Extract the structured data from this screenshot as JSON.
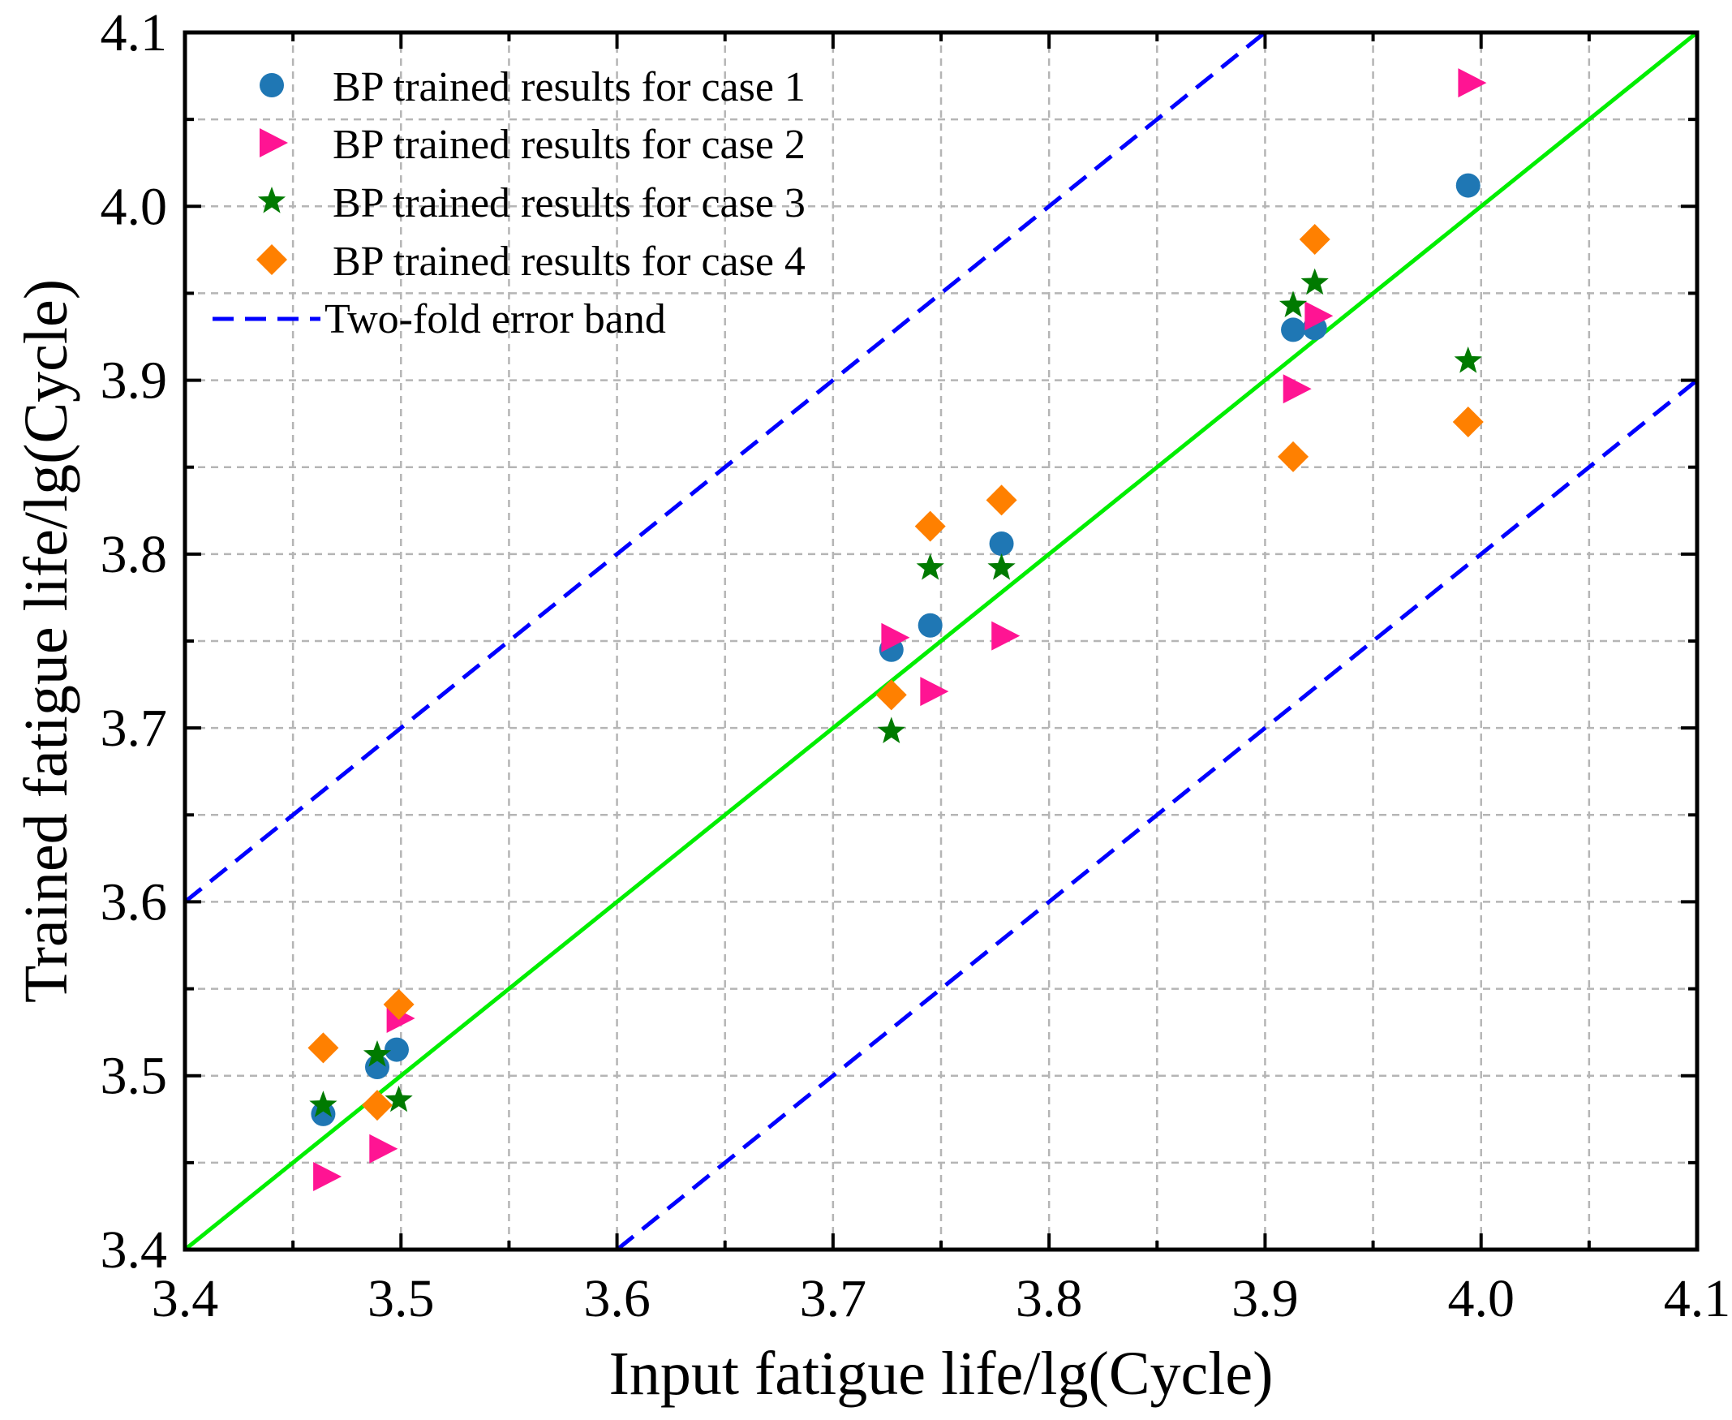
{
  "chart_data": {
    "type": "scatter",
    "xlabel": "Input fatigue life/lg(Cycle)",
    "ylabel": "Trained fatigue life/lg(Cycle)",
    "xlim": [
      3.4,
      4.1
    ],
    "ylim": [
      3.4,
      4.1
    ],
    "xticks": [
      "3.4",
      "3.5",
      "3.6",
      "3.7",
      "3.8",
      "3.9",
      "4.0",
      "4.1"
    ],
    "yticks": [
      "3.4",
      "3.5",
      "3.6",
      "3.7",
      "3.8",
      "3.9",
      "4.0",
      "4.1"
    ],
    "grid": true,
    "legend_position": "top-left",
    "series": [
      {
        "name": "BP trained results for case 1",
        "marker": "circle",
        "color": "#1f77b4",
        "x": [
          3.464,
          3.489,
          3.498,
          3.727,
          3.745,
          3.778,
          3.913,
          3.923,
          3.994
        ],
        "y": [
          3.478,
          3.505,
          3.515,
          3.745,
          3.759,
          3.806,
          3.929,
          3.93,
          4.012
        ]
      },
      {
        "name": "BP trained results for case 2",
        "marker": "triangle-right",
        "color": "#ff1493",
        "x": [
          3.465,
          3.491,
          3.499,
          3.728,
          3.746,
          3.779,
          3.914,
          3.924,
          3.995
        ],
        "y": [
          3.442,
          3.458,
          3.533,
          3.752,
          3.721,
          3.753,
          3.895,
          3.937,
          4.071
        ]
      },
      {
        "name": "BP trained results for case 3",
        "marker": "star",
        "color": "#007a00",
        "x": [
          3.464,
          3.489,
          3.499,
          3.727,
          3.745,
          3.778,
          3.913,
          3.923,
          3.994
        ],
        "y": [
          3.483,
          3.512,
          3.486,
          3.698,
          3.792,
          3.792,
          3.943,
          3.956,
          3.911
        ]
      },
      {
        "name": "BP trained results for case 4",
        "marker": "diamond",
        "color": "#ff8000",
        "x": [
          3.464,
          3.489,
          3.499,
          3.727,
          3.745,
          3.778,
          3.913,
          3.923,
          3.994
        ],
        "y": [
          3.516,
          3.483,
          3.541,
          3.719,
          3.816,
          3.831,
          3.856,
          3.981,
          3.876
        ]
      }
    ],
    "lines": [
      {
        "name": "Two-fold error band",
        "style": "dashed",
        "color": "#0000ff",
        "segments": [
          {
            "x": [
              3.4,
              3.9
            ],
            "y": [
              3.6,
              4.1
            ]
          },
          {
            "x": [
              3.6,
              4.1
            ],
            "y": [
              3.4,
              3.9
            ]
          }
        ]
      },
      {
        "name": "",
        "style": "solid",
        "color": "#00ee00",
        "segments": [
          {
            "x": [
              3.4,
              4.1
            ],
            "y": [
              3.4,
              4.1
            ]
          }
        ]
      }
    ],
    "legend": [
      "BP trained results for case 1",
      "BP trained results for case 2",
      "BP trained results for case 3",
      "BP trained results for case 4",
      "Two-fold error band"
    ]
  }
}
